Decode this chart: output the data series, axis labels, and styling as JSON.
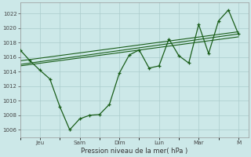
{
  "xlabel": "Pression niveau de la mer( hPa )",
  "bg_color": "#cce8e8",
  "line_color": "#1a5e1a",
  "grid_color": "#aacccc",
  "ylim": [
    1005,
    1023.5
  ],
  "yticks": [
    1006,
    1008,
    1010,
    1012,
    1014,
    1016,
    1018,
    1020,
    1022
  ],
  "x_day_labels": [
    "Jeu",
    "Sam",
    "Dim",
    "Lun",
    "Mar",
    "M"
  ],
  "x_day_positions": [
    2,
    6,
    10,
    14,
    18,
    22
  ],
  "xlim": [
    0,
    23
  ],
  "series1_x": [
    0,
    1,
    2,
    3,
    4,
    5,
    6,
    7,
    8,
    9,
    10,
    11,
    12,
    13,
    14,
    15,
    16,
    17,
    18,
    19,
    20,
    21,
    22
  ],
  "series1_y": [
    1017.0,
    1015.5,
    1014.2,
    1013.0,
    1009.2,
    1006.0,
    1007.5,
    1008.0,
    1008.1,
    1009.5,
    1013.8,
    1016.3,
    1017.0,
    1014.5,
    1014.8,
    1018.5,
    1016.2,
    1015.2,
    1020.5,
    1016.5,
    1021.0,
    1022.5,
    1019.2
  ],
  "series2_x": [
    0,
    22
  ],
  "series2_y": [
    1015.0,
    1019.2
  ],
  "series3_x": [
    0,
    22
  ],
  "series3_y": [
    1014.2,
    1018.5
  ],
  "trend1_x": [
    0,
    22
  ],
  "trend1_y": [
    1015.5,
    1019.5
  ],
  "trend2_x": [
    0,
    22
  ],
  "trend2_y": [
    1014.8,
    1018.8
  ]
}
